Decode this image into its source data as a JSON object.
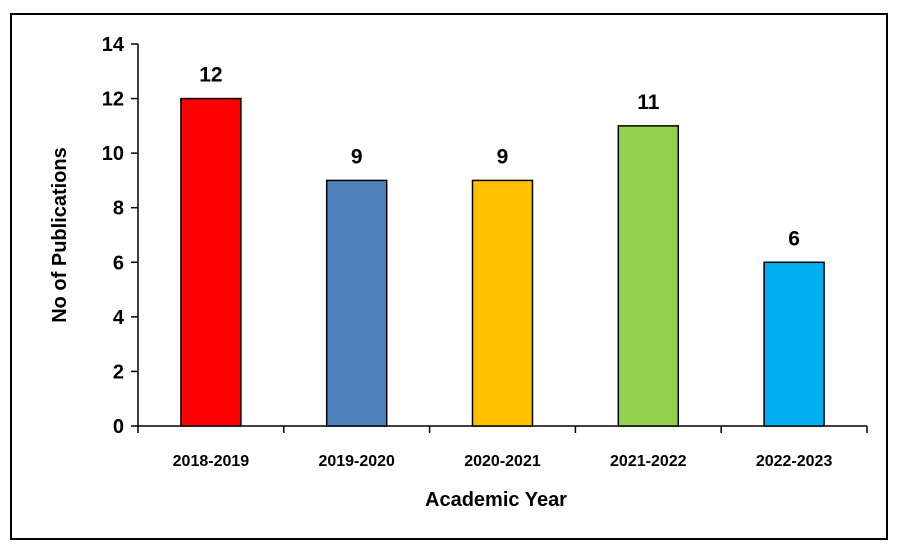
{
  "chart_data": {
    "type": "bar",
    "title": "",
    "xlabel": "Academic Year",
    "ylabel": "No of Publications",
    "categories": [
      "2018-2019",
      "2019-2020",
      "2020-2021",
      "2021-2022",
      "2022-2023"
    ],
    "values": [
      12,
      9,
      9,
      11,
      6
    ],
    "data_labels": [
      "12",
      "9",
      "9",
      "11",
      "6"
    ],
    "bar_colors": [
      "#ff0000",
      "#4f81bd",
      "#ffc000",
      "#92d050",
      "#00b0f0"
    ],
    "ylim": [
      0,
      14
    ],
    "yticks": [
      0,
      2,
      4,
      6,
      8,
      10,
      12,
      14
    ],
    "ytick_labels": [
      "0",
      "2",
      "4",
      "6",
      "8",
      "10",
      "12",
      "14"
    ],
    "grid": false,
    "legend": "none"
  }
}
